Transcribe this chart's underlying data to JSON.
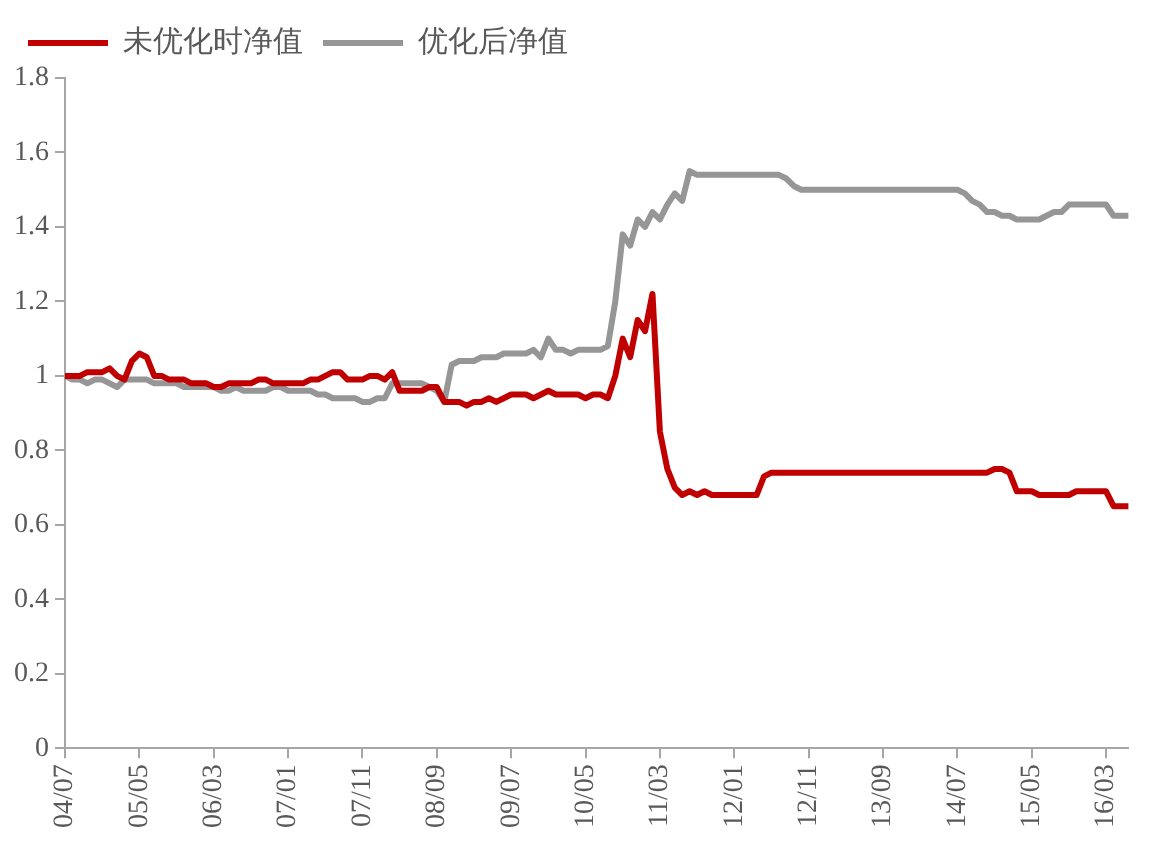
{
  "chart_data": {
    "type": "line",
    "categories": [
      "04/07",
      null,
      null,
      null,
      null,
      null,
      null,
      null,
      null,
      null,
      "05/05",
      null,
      null,
      null,
      null,
      null,
      null,
      null,
      null,
      null,
      "06/03",
      null,
      null,
      null,
      null,
      null,
      null,
      null,
      null,
      null,
      "07/01",
      null,
      null,
      null,
      null,
      null,
      null,
      null,
      null,
      null,
      "07/11",
      null,
      null,
      null,
      null,
      null,
      null,
      null,
      null,
      null,
      "08/09",
      null,
      null,
      null,
      null,
      null,
      null,
      null,
      null,
      null,
      "09/07",
      null,
      null,
      null,
      null,
      null,
      null,
      null,
      null,
      null,
      "10/05",
      null,
      null,
      null,
      null,
      null,
      null,
      null,
      null,
      null,
      "11/03",
      null,
      null,
      null,
      null,
      null,
      null,
      null,
      null,
      null,
      "12/01",
      null,
      null,
      null,
      null,
      null,
      null,
      null,
      null,
      null,
      "12/11",
      null,
      null,
      null,
      null,
      null,
      null,
      null,
      null,
      null,
      "13/09",
      null,
      null,
      null,
      null,
      null,
      null,
      null,
      null,
      null,
      "14/07",
      null,
      null,
      null,
      null,
      null,
      null,
      null,
      null,
      null,
      "15/05",
      null,
      null,
      null,
      null,
      null,
      null,
      null,
      null,
      null,
      "16/03",
      null,
      null,
      null
    ],
    "series": [
      {
        "name": "未优化时净值",
        "color": "#c00000",
        "values": [
          1.0,
          1.0,
          1.0,
          1.01,
          1.01,
          1.01,
          1.02,
          1.0,
          0.99,
          1.04,
          1.06,
          1.05,
          1.0,
          1.0,
          0.99,
          0.99,
          0.99,
          0.98,
          0.98,
          0.98,
          0.97,
          0.97,
          0.98,
          0.98,
          0.98,
          0.98,
          0.99,
          0.99,
          0.98,
          0.98,
          0.98,
          0.98,
          0.98,
          0.99,
          0.99,
          1.0,
          1.01,
          1.01,
          0.99,
          0.99,
          0.99,
          1.0,
          1.0,
          0.99,
          1.01,
          0.96,
          0.96,
          0.96,
          0.96,
          0.97,
          0.97,
          0.93,
          0.93,
          0.93,
          0.92,
          0.93,
          0.93,
          0.94,
          0.93,
          0.94,
          0.95,
          0.95,
          0.95,
          0.94,
          0.95,
          0.96,
          0.95,
          0.95,
          0.95,
          0.95,
          0.94,
          0.95,
          0.95,
          0.94,
          1.0,
          1.1,
          1.05,
          1.15,
          1.12,
          1.22,
          0.85,
          0.75,
          0.7,
          0.68,
          0.69,
          0.68,
          0.69,
          0.68,
          0.68,
          0.68,
          0.68,
          0.68,
          0.68,
          0.68,
          0.73,
          0.74,
          0.74,
          0.74,
          0.74,
          0.74,
          0.74,
          0.74,
          0.74,
          0.74,
          0.74,
          0.74,
          0.74,
          0.74,
          0.74,
          0.74,
          0.74,
          0.74,
          0.74,
          0.74,
          0.74,
          0.74,
          0.74,
          0.74,
          0.74,
          0.74,
          0.74,
          0.74,
          0.74,
          0.74,
          0.74,
          0.75,
          0.75,
          0.74,
          0.69,
          0.69,
          0.69,
          0.68,
          0.68,
          0.68,
          0.68,
          0.68,
          0.69,
          0.69,
          0.69,
          0.69,
          0.69,
          0.65,
          0.65,
          0.65
        ]
      },
      {
        "name": "优化后净值",
        "color": "#969696",
        "values": [
          1.0,
          0.99,
          0.99,
          0.98,
          0.99,
          0.99,
          0.98,
          0.97,
          0.99,
          0.99,
          0.99,
          0.99,
          0.98,
          0.98,
          0.98,
          0.98,
          0.97,
          0.97,
          0.97,
          0.97,
          0.97,
          0.96,
          0.96,
          0.97,
          0.96,
          0.96,
          0.96,
          0.96,
          0.97,
          0.97,
          0.96,
          0.96,
          0.96,
          0.96,
          0.95,
          0.95,
          0.94,
          0.94,
          0.94,
          0.94,
          0.93,
          0.93,
          0.94,
          0.94,
          0.98,
          0.98,
          0.98,
          0.98,
          0.98,
          0.97,
          0.96,
          0.93,
          1.03,
          1.04,
          1.04,
          1.04,
          1.05,
          1.05,
          1.05,
          1.06,
          1.06,
          1.06,
          1.06,
          1.07,
          1.05,
          1.1,
          1.07,
          1.07,
          1.06,
          1.07,
          1.07,
          1.07,
          1.07,
          1.08,
          1.2,
          1.38,
          1.35,
          1.42,
          1.4,
          1.44,
          1.42,
          1.46,
          1.49,
          1.47,
          1.55,
          1.54,
          1.54,
          1.54,
          1.54,
          1.54,
          1.54,
          1.54,
          1.54,
          1.54,
          1.54,
          1.54,
          1.54,
          1.53,
          1.51,
          1.5,
          1.5,
          1.5,
          1.5,
          1.5,
          1.5,
          1.5,
          1.5,
          1.5,
          1.5,
          1.5,
          1.5,
          1.5,
          1.5,
          1.5,
          1.5,
          1.5,
          1.5,
          1.5,
          1.5,
          1.5,
          1.5,
          1.49,
          1.47,
          1.46,
          1.44,
          1.44,
          1.43,
          1.43,
          1.42,
          1.42,
          1.42,
          1.42,
          1.43,
          1.44,
          1.44,
          1.46,
          1.46,
          1.46,
          1.46,
          1.46,
          1.46,
          1.43,
          1.43,
          1.43
        ]
      }
    ],
    "ylim": [
      0,
      1.8
    ],
    "yticks": [
      0,
      0.2,
      0.4,
      0.6,
      0.8,
      1,
      1.2,
      1.4,
      1.6,
      1.8
    ],
    "grid": false,
    "legend": "top",
    "marker": "none",
    "line_style": "solid"
  }
}
